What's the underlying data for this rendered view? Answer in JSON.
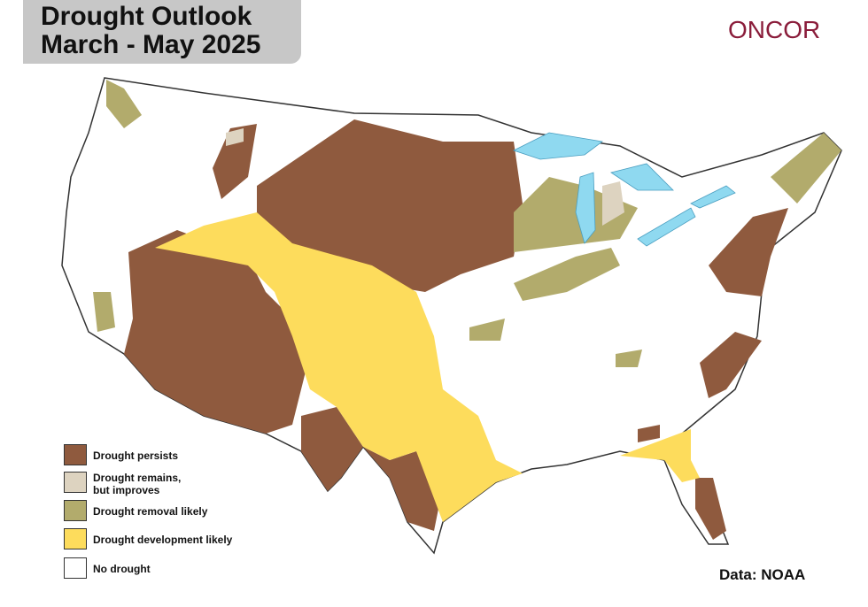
{
  "header": {
    "title_line1": "Drought Outlook",
    "title_line2": "March - May 2025",
    "logo": "ONCOR"
  },
  "legend": {
    "items": [
      "Drought persists",
      "Drought remains,",
      "but improves",
      "Drought removal likely",
      "Drought development likely",
      "No drought"
    ]
  },
  "source": "Data: NOAA"
}
